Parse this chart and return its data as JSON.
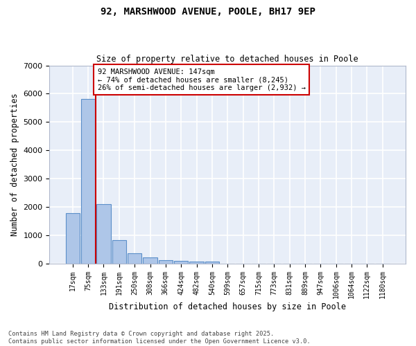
{
  "title_line1": "92, MARSHWOOD AVENUE, POOLE, BH17 9EP",
  "title_line2": "Size of property relative to detached houses in Poole",
  "xlabel": "Distribution of detached houses by size in Poole",
  "ylabel": "Number of detached properties",
  "categories": [
    "17sqm",
    "75sqm",
    "133sqm",
    "191sqm",
    "250sqm",
    "308sqm",
    "366sqm",
    "424sqm",
    "482sqm",
    "540sqm",
    "599sqm",
    "657sqm",
    "715sqm",
    "773sqm",
    "831sqm",
    "889sqm",
    "947sqm",
    "1006sqm",
    "1064sqm",
    "1122sqm",
    "1180sqm"
  ],
  "values": [
    1780,
    5820,
    2090,
    820,
    360,
    210,
    115,
    90,
    70,
    55,
    0,
    0,
    0,
    0,
    0,
    0,
    0,
    0,
    0,
    0,
    0
  ],
  "bar_color": "#aec6e8",
  "bar_edge_color": "#5b8fc9",
  "vline_color": "#cc0000",
  "annotation_text": "92 MARSHWOOD AVENUE: 147sqm\n← 74% of detached houses are smaller (8,245)\n26% of semi-detached houses are larger (2,932) →",
  "annotation_box_color": "#cc0000",
  "ylim": [
    0,
    7000
  ],
  "yticks": [
    0,
    1000,
    2000,
    3000,
    4000,
    5000,
    6000,
    7000
  ],
  "background_color": "#e8eef8",
  "grid_color": "#ffffff",
  "footer_line1": "Contains HM Land Registry data © Crown copyright and database right 2025.",
  "footer_line2": "Contains public sector information licensed under the Open Government Licence v3.0."
}
